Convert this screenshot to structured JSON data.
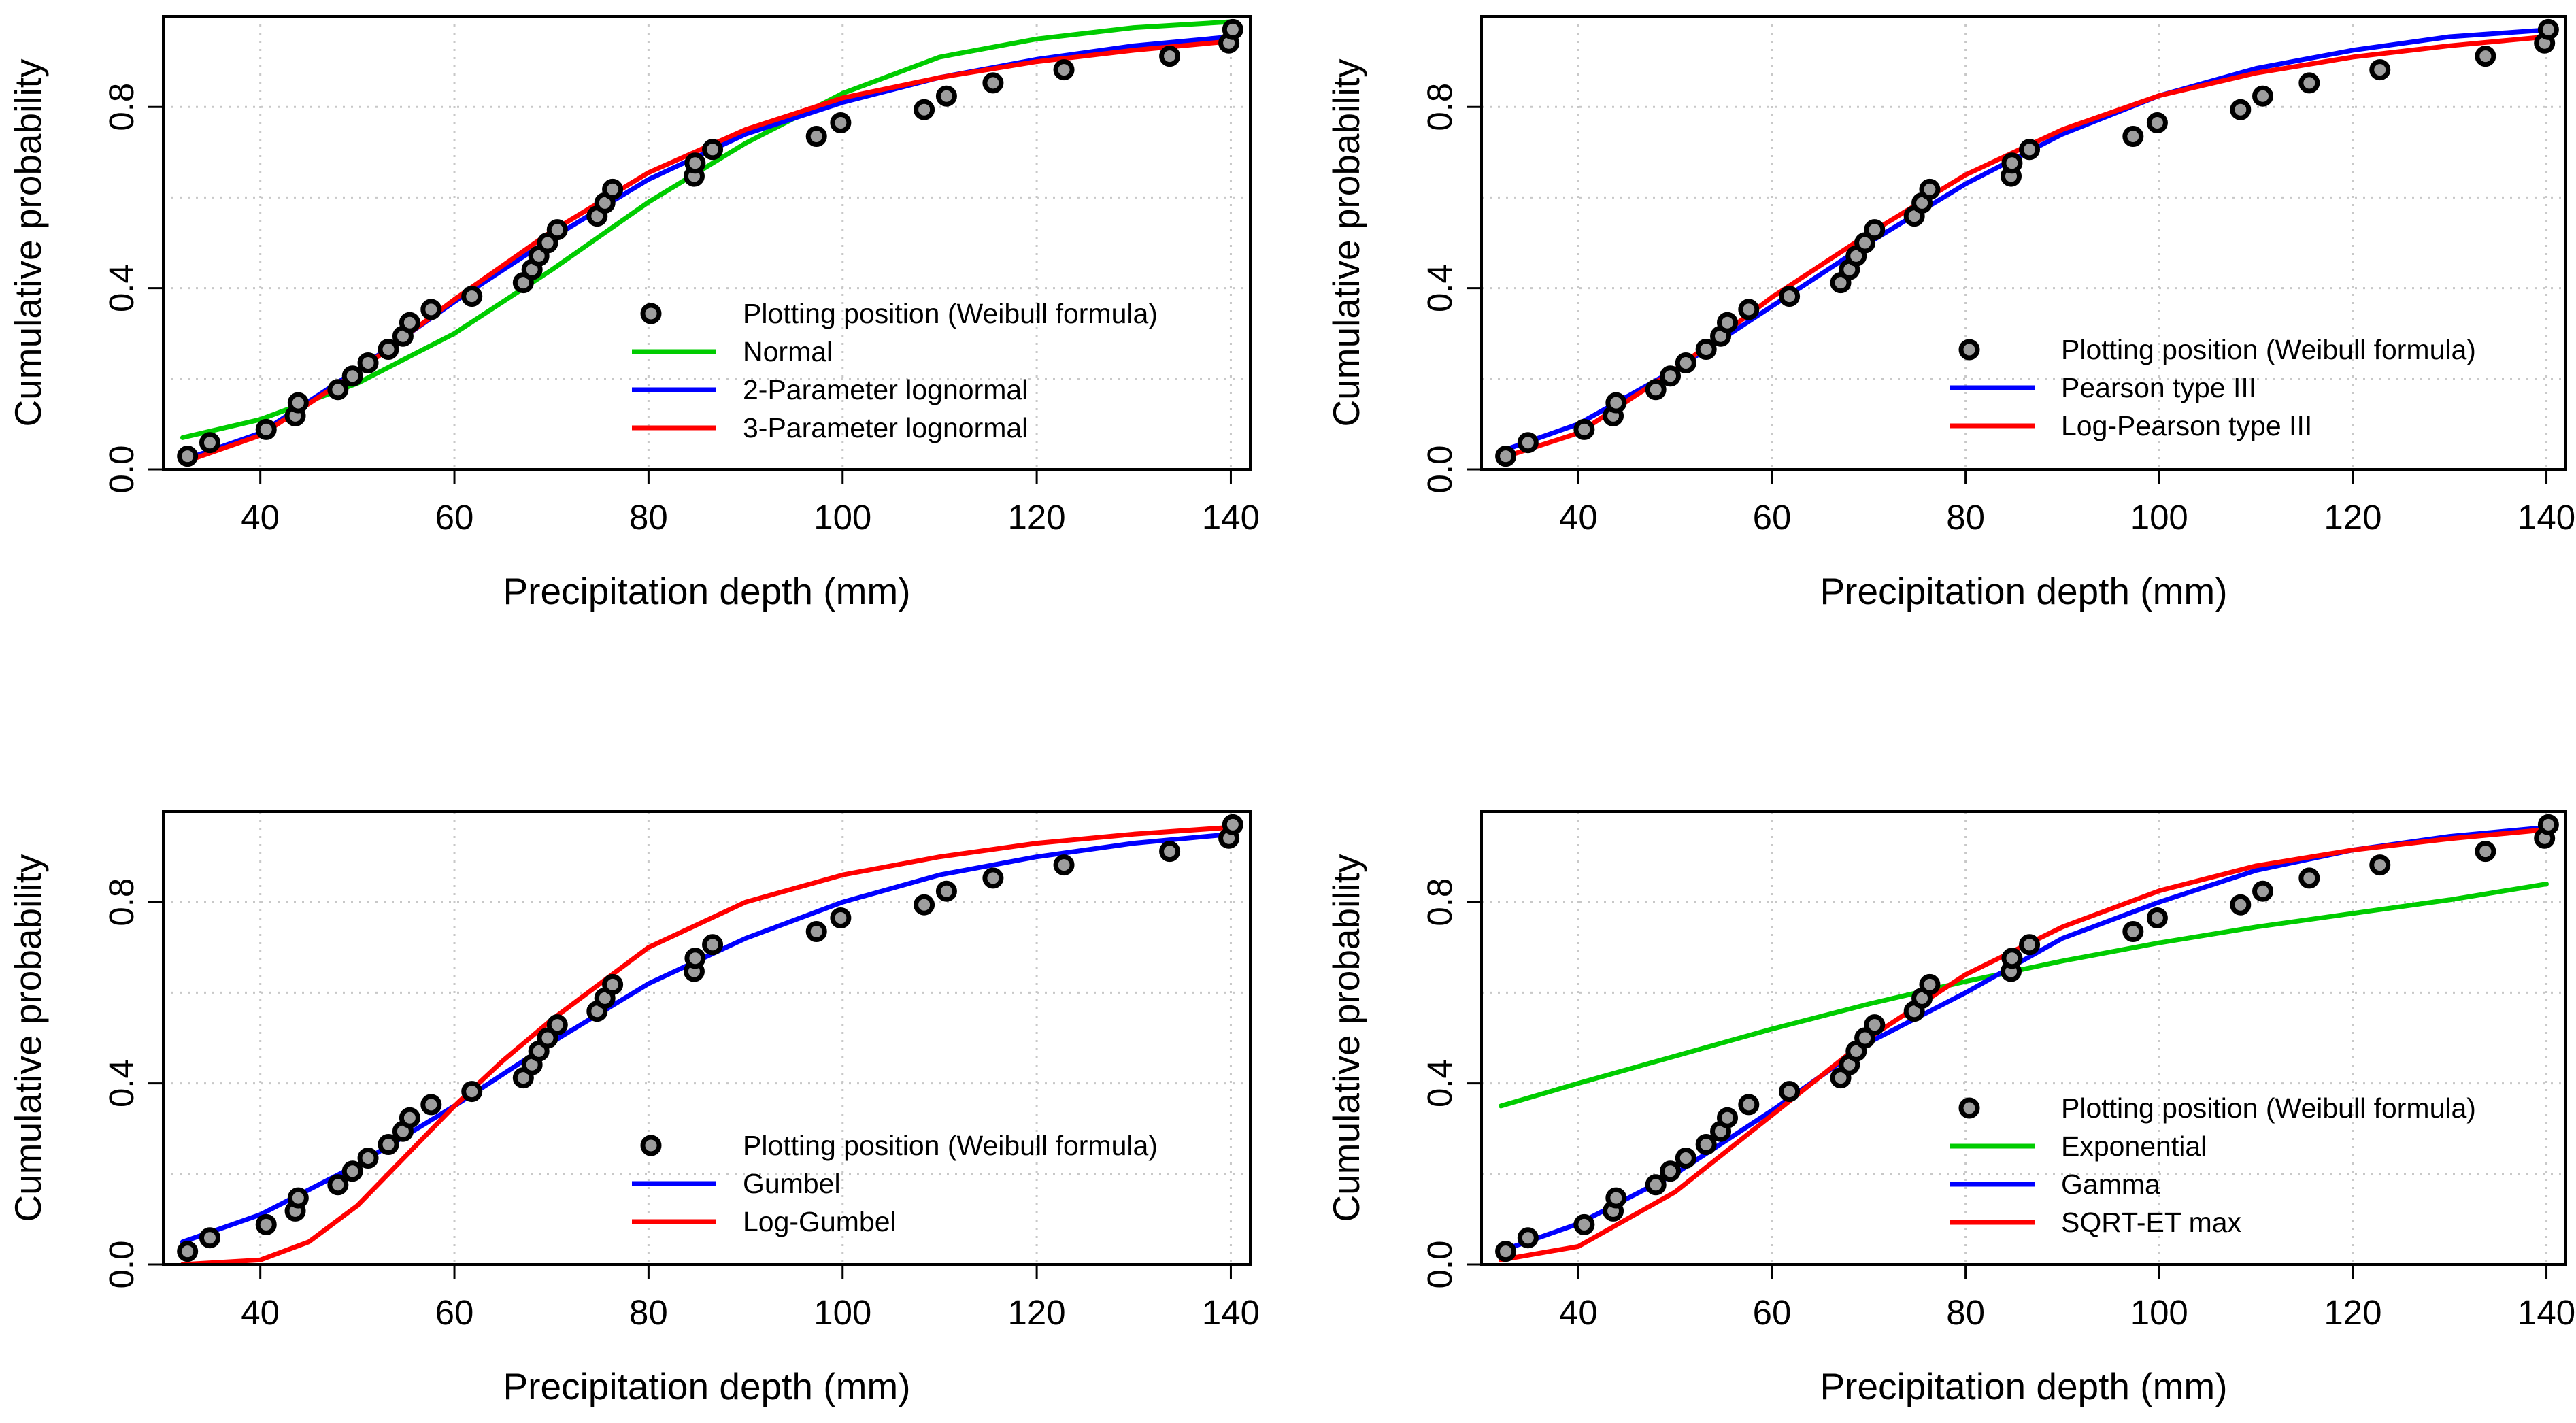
{
  "figure": {
    "colors": {
      "green": "#00cc00",
      "blue": "#0000ff",
      "red": "#ff0000",
      "points": "#000000",
      "point_fill": "#9e9e9e",
      "grid": "#c8c8c8"
    },
    "x_tick_labels": [
      "40",
      "60",
      "80",
      "100",
      "120",
      "140"
    ],
    "y_tick_labels": [
      "0.0",
      "0.4",
      "0.8"
    ]
  },
  "chart_data": [
    {
      "type": "line",
      "panel": "top-left",
      "title": "",
      "xlabel": "Precipitation depth (mm)",
      "ylabel": "Cumulative probability",
      "xlim": [
        30,
        142
      ],
      "ylim": [
        0,
        1
      ],
      "xticks": [
        40,
        60,
        80,
        100,
        120,
        140
      ],
      "yticks": [
        0.0,
        0.4,
        0.8
      ],
      "grid": true,
      "legend_position": "bottom-right",
      "points": {
        "name": "Plotting position (Weibull formula)",
        "x": [
          32.5,
          34.8,
          40.6,
          43.6,
          43.9,
          48.0,
          49.5,
          51.1,
          53.2,
          54.7,
          55.4,
          57.6,
          61.8,
          67.1,
          68.0,
          68.7,
          69.6,
          70.6,
          74.7,
          75.5,
          76.3,
          84.7,
          84.8,
          86.6,
          97.3,
          99.8,
          108.4,
          110.7,
          115.5,
          122.8,
          133.7,
          139.8,
          140.2
        ],
        "y": [
          0.029,
          0.059,
          0.088,
          0.118,
          0.147,
          0.176,
          0.206,
          0.235,
          0.265,
          0.294,
          0.324,
          0.353,
          0.382,
          0.412,
          0.441,
          0.471,
          0.5,
          0.529,
          0.559,
          0.588,
          0.618,
          0.647,
          0.676,
          0.706,
          0.735,
          0.765,
          0.794,
          0.824,
          0.853,
          0.882,
          0.912,
          0.941,
          0.971
        ]
      },
      "series": [
        {
          "name": "Normal",
          "color": "green",
          "x": [
            32,
            40,
            50,
            60,
            70,
            80,
            90,
            100,
            110,
            120,
            130,
            140
          ],
          "y": [
            0.07,
            0.11,
            0.19,
            0.3,
            0.44,
            0.59,
            0.72,
            0.83,
            0.91,
            0.95,
            0.975,
            0.988
          ]
        },
        {
          "name": "2-Parameter lognormal",
          "color": "blue",
          "x": [
            32,
            40,
            50,
            60,
            70,
            80,
            90,
            100,
            110,
            120,
            130,
            140
          ],
          "y": [
            0.02,
            0.08,
            0.22,
            0.37,
            0.51,
            0.64,
            0.74,
            0.81,
            0.865,
            0.905,
            0.935,
            0.955
          ]
        },
        {
          "name": "3-Parameter lognormal",
          "color": "red",
          "x": [
            32,
            40,
            50,
            60,
            70,
            80,
            90,
            100,
            110,
            120,
            130,
            140
          ],
          "y": [
            0.015,
            0.075,
            0.215,
            0.375,
            0.525,
            0.655,
            0.75,
            0.82,
            0.865,
            0.9,
            0.925,
            0.945
          ]
        }
      ]
    },
    {
      "type": "line",
      "panel": "top-right",
      "title": "",
      "xlabel": "Precipitation depth (mm)",
      "ylabel": "Cumulative probability",
      "xlim": [
        30,
        142
      ],
      "ylim": [
        0,
        1
      ],
      "xticks": [
        40,
        60,
        80,
        100,
        120,
        140
      ],
      "yticks": [
        0.0,
        0.4,
        0.8
      ],
      "grid": true,
      "legend_position": "bottom-right",
      "points": {
        "name": "Plotting position (Weibull formula)",
        "x": [
          32.5,
          34.8,
          40.6,
          43.6,
          43.9,
          48.0,
          49.5,
          51.1,
          53.2,
          54.7,
          55.4,
          57.6,
          61.8,
          67.1,
          68.0,
          68.7,
          69.6,
          70.6,
          74.7,
          75.5,
          76.3,
          84.7,
          84.8,
          86.6,
          97.3,
          99.8,
          108.4,
          110.7,
          115.5,
          122.8,
          133.7,
          139.8,
          140.2
        ],
        "y": [
          0.029,
          0.059,
          0.088,
          0.118,
          0.147,
          0.176,
          0.206,
          0.235,
          0.265,
          0.294,
          0.324,
          0.353,
          0.382,
          0.412,
          0.441,
          0.471,
          0.5,
          0.529,
          0.559,
          0.588,
          0.618,
          0.647,
          0.676,
          0.706,
          0.735,
          0.765,
          0.794,
          0.824,
          0.853,
          0.882,
          0.912,
          0.941,
          0.971
        ]
      },
      "series": [
        {
          "name": "Pearson type III",
          "color": "blue",
          "x": [
            32,
            40,
            50,
            60,
            70,
            80,
            90,
            100,
            110,
            120,
            130,
            140
          ],
          "y": [
            0.04,
            0.1,
            0.22,
            0.36,
            0.5,
            0.63,
            0.74,
            0.825,
            0.885,
            0.925,
            0.955,
            0.97
          ]
        },
        {
          "name": "Log-Pearson type III",
          "color": "red",
          "x": [
            32,
            40,
            50,
            60,
            70,
            80,
            90,
            100,
            110,
            120,
            130,
            140
          ],
          "y": [
            0.025,
            0.08,
            0.22,
            0.38,
            0.52,
            0.65,
            0.75,
            0.825,
            0.875,
            0.91,
            0.935,
            0.955
          ]
        }
      ]
    },
    {
      "type": "line",
      "panel": "bottom-left",
      "title": "",
      "xlabel": "Precipitation depth (mm)",
      "ylabel": "Cumulative probability",
      "xlim": [
        30,
        142
      ],
      "ylim": [
        0,
        1
      ],
      "xticks": [
        40,
        60,
        80,
        100,
        120,
        140
      ],
      "yticks": [
        0.0,
        0.4,
        0.8
      ],
      "grid": true,
      "legend_position": "bottom-right",
      "points": {
        "name": "Plotting position (Weibull formula)",
        "x": [
          32.5,
          34.8,
          40.6,
          43.6,
          43.9,
          48.0,
          49.5,
          51.1,
          53.2,
          54.7,
          55.4,
          57.6,
          61.8,
          67.1,
          68.0,
          68.7,
          69.6,
          70.6,
          74.7,
          75.5,
          76.3,
          84.7,
          84.8,
          86.6,
          97.3,
          99.8,
          108.4,
          110.7,
          115.5,
          122.8,
          133.7,
          139.8,
          140.2
        ],
        "y": [
          0.029,
          0.059,
          0.088,
          0.118,
          0.147,
          0.176,
          0.206,
          0.235,
          0.265,
          0.294,
          0.324,
          0.353,
          0.382,
          0.412,
          0.441,
          0.471,
          0.5,
          0.529,
          0.559,
          0.588,
          0.618,
          0.647,
          0.676,
          0.706,
          0.735,
          0.765,
          0.794,
          0.824,
          0.853,
          0.882,
          0.912,
          0.941,
          0.971
        ]
      },
      "series": [
        {
          "name": "Gumbel",
          "color": "blue",
          "x": [
            32,
            40,
            50,
            60,
            70,
            80,
            90,
            100,
            110,
            120,
            130,
            140
          ],
          "y": [
            0.05,
            0.11,
            0.22,
            0.35,
            0.49,
            0.62,
            0.72,
            0.8,
            0.86,
            0.9,
            0.93,
            0.95
          ]
        },
        {
          "name": "Log-Gumbel",
          "color": "red",
          "x": [
            32,
            40,
            45,
            50,
            55,
            60,
            65,
            70,
            80,
            90,
            100,
            110,
            120,
            130,
            140
          ],
          "y": [
            0.0,
            0.01,
            0.05,
            0.13,
            0.24,
            0.35,
            0.45,
            0.54,
            0.7,
            0.8,
            0.86,
            0.9,
            0.93,
            0.95,
            0.965
          ]
        }
      ]
    },
    {
      "type": "line",
      "panel": "bottom-right",
      "title": "",
      "xlabel": "Precipitation depth (mm)",
      "ylabel": "Cumulative probability",
      "xlim": [
        30,
        142
      ],
      "ylim": [
        0,
        1
      ],
      "xticks": [
        40,
        60,
        80,
        100,
        120,
        140
      ],
      "yticks": [
        0.0,
        0.4,
        0.8
      ],
      "grid": true,
      "legend_position": "bottom-right",
      "points": {
        "name": "Plotting position (Weibull formula)",
        "x": [
          32.5,
          34.8,
          40.6,
          43.6,
          43.9,
          48.0,
          49.5,
          51.1,
          53.2,
          54.7,
          55.4,
          57.6,
          61.8,
          67.1,
          68.0,
          68.7,
          69.6,
          70.6,
          74.7,
          75.5,
          76.3,
          84.7,
          84.8,
          86.6,
          97.3,
          99.8,
          108.4,
          110.7,
          115.5,
          122.8,
          133.7,
          139.8,
          140.2
        ],
        "y": [
          0.029,
          0.059,
          0.088,
          0.118,
          0.147,
          0.176,
          0.206,
          0.235,
          0.265,
          0.294,
          0.324,
          0.353,
          0.382,
          0.412,
          0.441,
          0.471,
          0.5,
          0.529,
          0.559,
          0.588,
          0.618,
          0.647,
          0.676,
          0.706,
          0.735,
          0.765,
          0.794,
          0.824,
          0.853,
          0.882,
          0.912,
          0.941,
          0.971
        ]
      },
      "series": [
        {
          "name": "Exponential",
          "color": "green",
          "x": [
            32,
            40,
            50,
            60,
            70,
            80,
            90,
            100,
            110,
            120,
            130,
            140
          ],
          "y": [
            0.35,
            0.4,
            0.46,
            0.52,
            0.575,
            0.625,
            0.67,
            0.71,
            0.745,
            0.775,
            0.805,
            0.84
          ]
        },
        {
          "name": "Gamma",
          "color": "blue",
          "x": [
            32,
            40,
            50,
            60,
            70,
            80,
            90,
            100,
            110,
            120,
            130,
            140
          ],
          "y": [
            0.03,
            0.09,
            0.2,
            0.34,
            0.49,
            0.6,
            0.72,
            0.8,
            0.87,
            0.915,
            0.945,
            0.965
          ]
        },
        {
          "name": "SQRT-ET max",
          "color": "red",
          "x": [
            32,
            40,
            50,
            60,
            70,
            80,
            90,
            100,
            110,
            120,
            130,
            140
          ],
          "y": [
            0.01,
            0.04,
            0.16,
            0.33,
            0.5,
            0.64,
            0.745,
            0.825,
            0.88,
            0.915,
            0.94,
            0.96
          ]
        }
      ]
    }
  ]
}
